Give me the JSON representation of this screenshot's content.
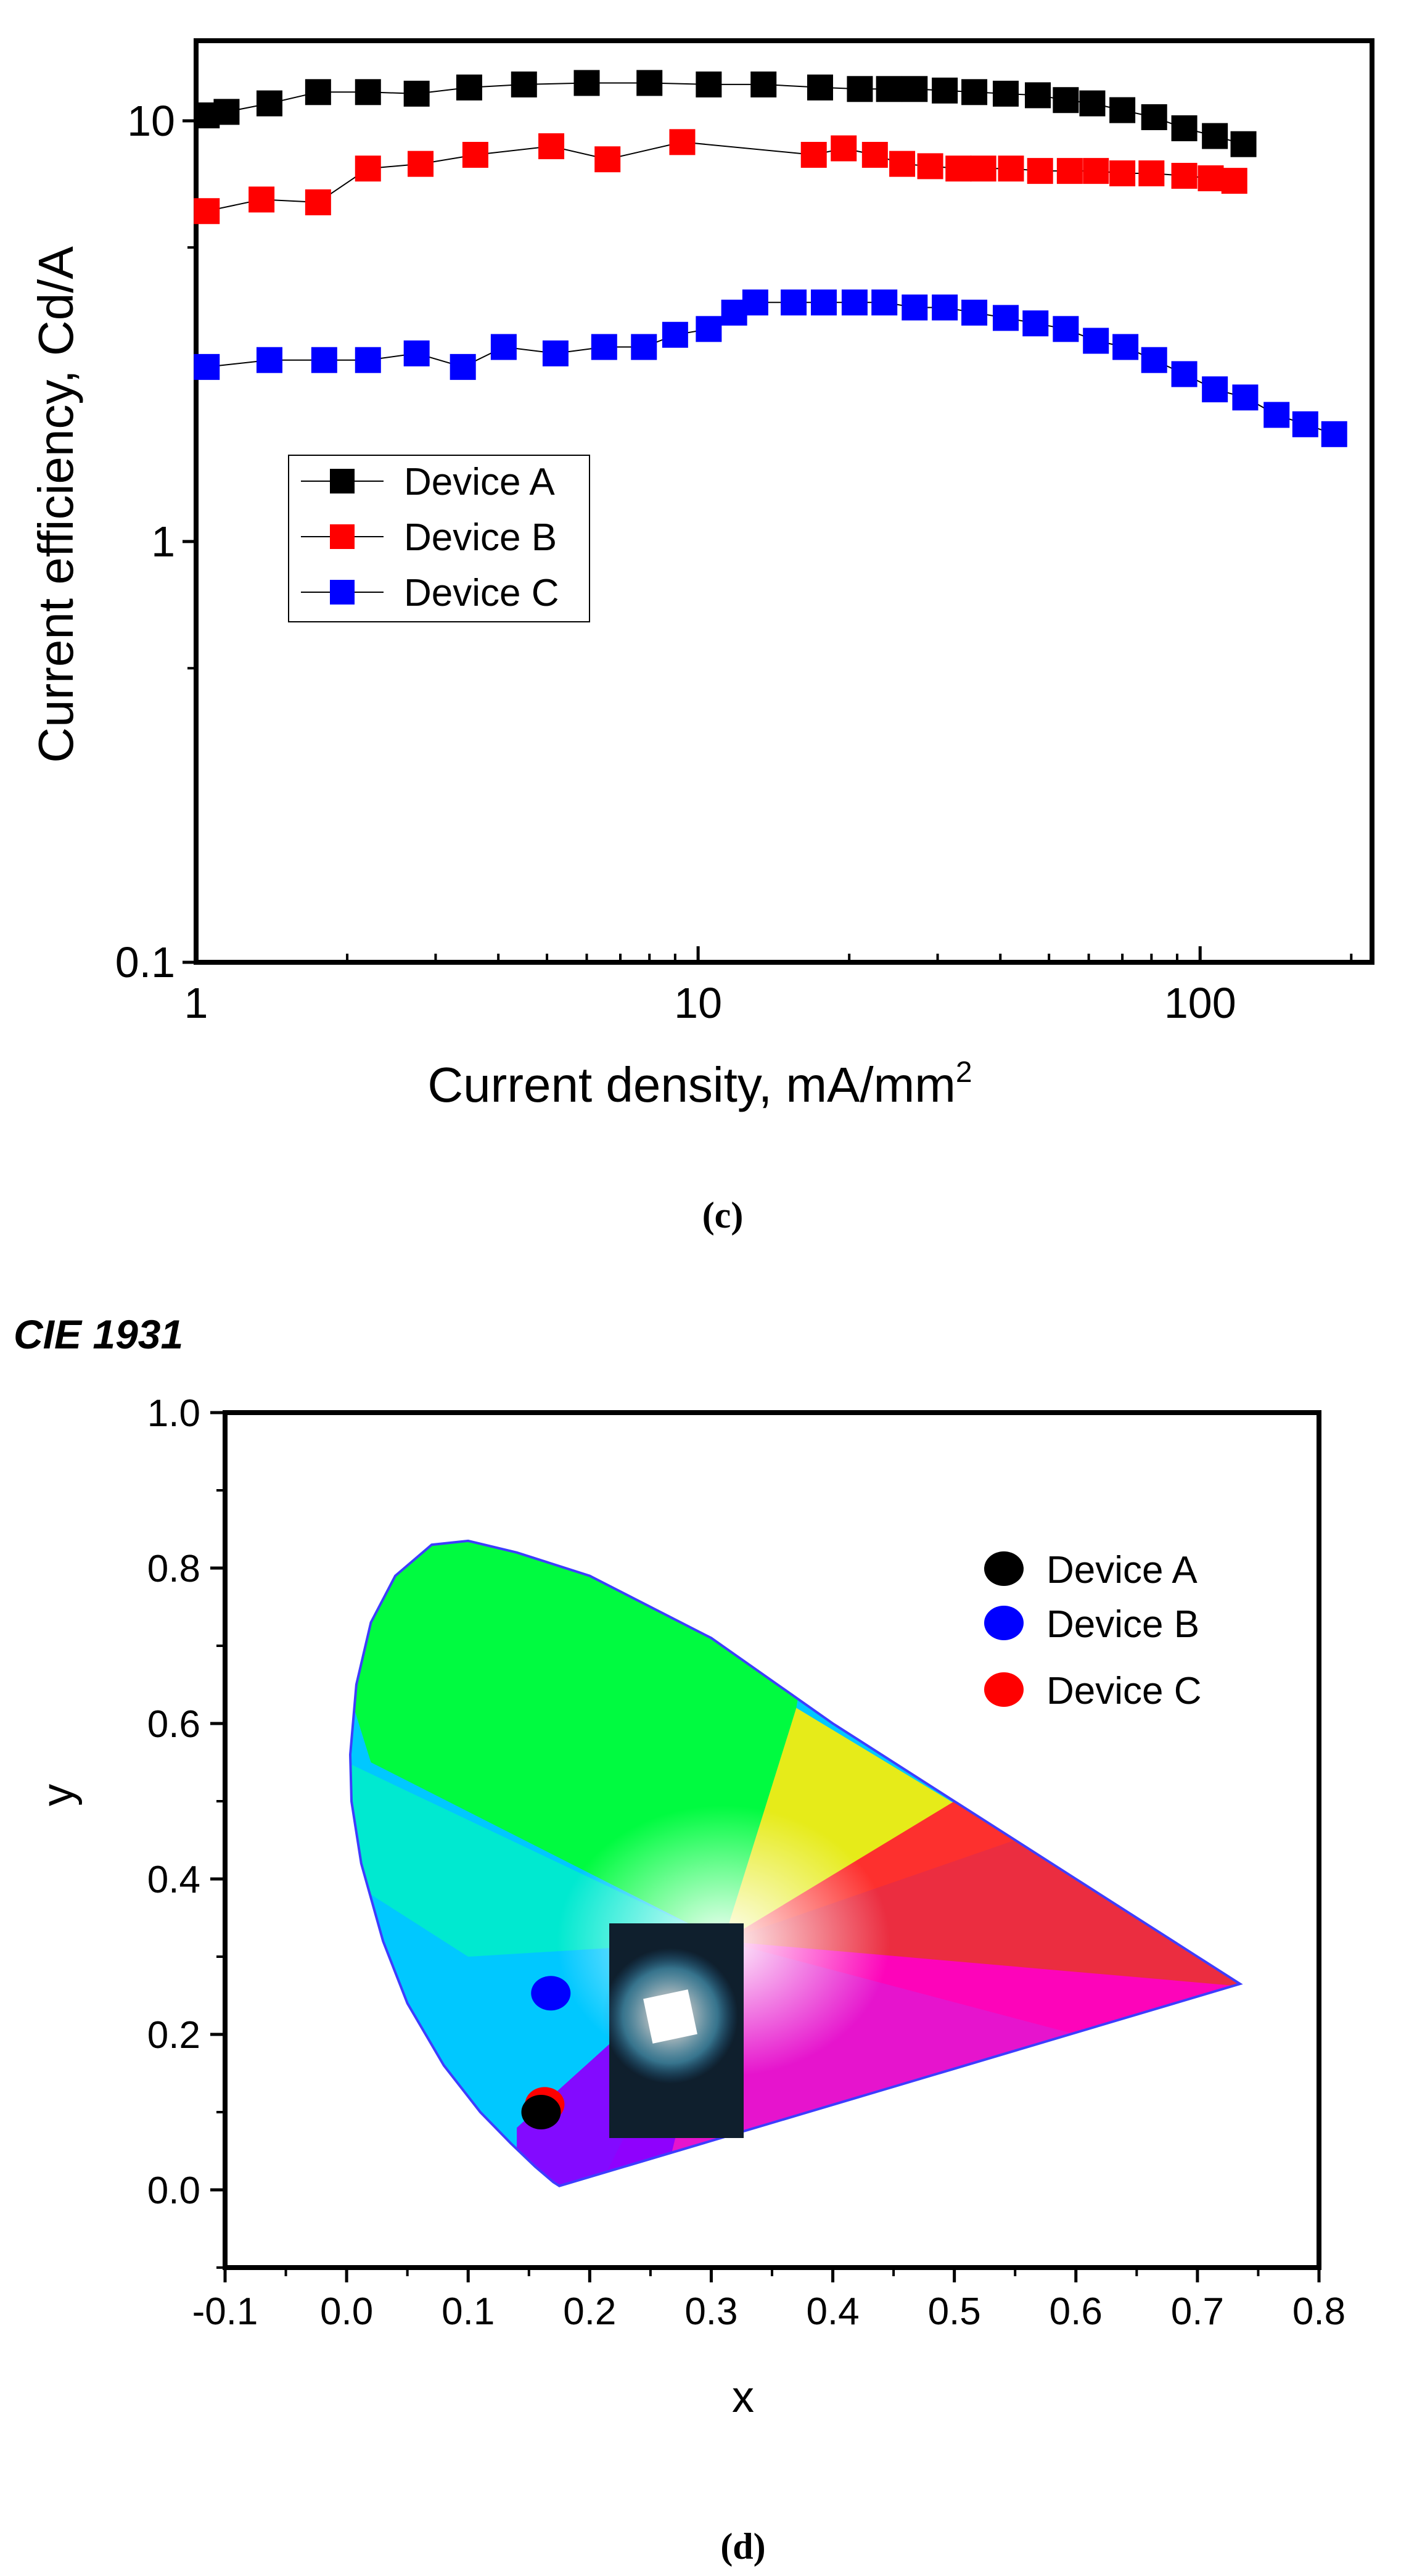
{
  "chart_data": [
    {
      "id": "c",
      "type": "scatter",
      "panel_label": "(c)",
      "x_scale": "log",
      "y_scale": "log",
      "xlabel": "Current density, mA/mm",
      "xlabel_sup": "2",
      "ylabel": "Current efficiency, Cd/A",
      "xlim": [
        1,
        220
      ],
      "ylim": [
        0.1,
        15.5
      ],
      "x_ticks": [
        1,
        10,
        100
      ],
      "x_tick_labels": [
        "1",
        "10",
        "100"
      ],
      "y_ticks": [
        0.1,
        1,
        10
      ],
      "y_tick_labels": [
        "0.1",
        "1",
        "10"
      ],
      "grid": false,
      "legend_position": "left-middle",
      "series": [
        {
          "name": "Device A",
          "color": "#000000",
          "points": [
            [
              1.05,
              10.3
            ],
            [
              1.15,
              10.5
            ],
            [
              1.4,
              11.0
            ],
            [
              1.75,
              11.7
            ],
            [
              2.2,
              11.7
            ],
            [
              2.75,
              11.6
            ],
            [
              3.5,
              12.0
            ],
            [
              4.5,
              12.2
            ],
            [
              6.0,
              12.3
            ],
            [
              8.0,
              12.3
            ],
            [
              10.5,
              12.2
            ],
            [
              13.5,
              12.2
            ],
            [
              17.5,
              12.0
            ],
            [
              21.0,
              11.9
            ],
            [
              24.0,
              11.9
            ],
            [
              27.0,
              11.9
            ],
            [
              31.0,
              11.8
            ],
            [
              35.5,
              11.7
            ],
            [
              41.0,
              11.6
            ],
            [
              47.5,
              11.5
            ],
            [
              54.0,
              11.2
            ],
            [
              61.0,
              11.0
            ],
            [
              70.0,
              10.6
            ],
            [
              81.0,
              10.2
            ],
            [
              93.0,
              9.6
            ],
            [
              107.0,
              9.2
            ],
            [
              122.0,
              8.8
            ]
          ]
        },
        {
          "name": "Device B",
          "color": "#ff0000",
          "points": [
            [
              1.05,
              6.1
            ],
            [
              1.35,
              6.5
            ],
            [
              1.75,
              6.4
            ],
            [
              2.2,
              7.7
            ],
            [
              2.8,
              7.9
            ],
            [
              3.6,
              8.3
            ],
            [
              5.1,
              8.7
            ],
            [
              6.6,
              8.1
            ],
            [
              9.3,
              8.9
            ],
            [
              17.0,
              8.3
            ],
            [
              19.5,
              8.6
            ],
            [
              22.5,
              8.3
            ],
            [
              25.5,
              7.9
            ],
            [
              29.0,
              7.8
            ],
            [
              33.0,
              7.7
            ],
            [
              37.0,
              7.7
            ],
            [
              42.0,
              7.7
            ],
            [
              48.0,
              7.6
            ],
            [
              55.0,
              7.6
            ],
            [
              62.0,
              7.6
            ],
            [
              70.0,
              7.5
            ],
            [
              80.0,
              7.5
            ],
            [
              93.0,
              7.4
            ],
            [
              105.0,
              7.3
            ],
            [
              117.0,
              7.2
            ]
          ]
        },
        {
          "name": "Device C",
          "color": "#0000ff",
          "points": [
            [
              1.05,
              2.6
            ],
            [
              1.4,
              2.7
            ],
            [
              1.8,
              2.7
            ],
            [
              2.2,
              2.7
            ],
            [
              2.75,
              2.8
            ],
            [
              3.4,
              2.6
            ],
            [
              4.1,
              2.9
            ],
            [
              5.2,
              2.8
            ],
            [
              6.5,
              2.9
            ],
            [
              7.8,
              2.9
            ],
            [
              9.0,
              3.1
            ],
            [
              10.5,
              3.2
            ],
            [
              11.8,
              3.5
            ],
            [
              13.0,
              3.7
            ],
            [
              15.5,
              3.7
            ],
            [
              17.8,
              3.7
            ],
            [
              20.5,
              3.7
            ],
            [
              23.5,
              3.7
            ],
            [
              27.0,
              3.6
            ],
            [
              31.0,
              3.6
            ],
            [
              35.5,
              3.5
            ],
            [
              41.0,
              3.4
            ],
            [
              47.0,
              3.3
            ],
            [
              54.0,
              3.2
            ],
            [
              62.0,
              3.0
            ],
            [
              71.0,
              2.9
            ],
            [
              81.0,
              2.7
            ],
            [
              93.0,
              2.5
            ],
            [
              107.0,
              2.3
            ],
            [
              123.0,
              2.2
            ],
            [
              142.0,
              2.0
            ],
            [
              162.0,
              1.9
            ],
            [
              185.0,
              1.8
            ]
          ]
        }
      ]
    },
    {
      "id": "d",
      "type": "scatter",
      "title": "CIE 1931",
      "panel_label": "(d)",
      "xlabel": "x",
      "ylabel": "y",
      "xlim": [
        -0.1,
        0.8
      ],
      "ylim": [
        -0.1,
        1.0
      ],
      "x_ticks": [
        -0.1,
        0.0,
        0.1,
        0.2,
        0.3,
        0.4,
        0.5,
        0.6,
        0.7,
        0.8
      ],
      "x_tick_labels": [
        "-0.1",
        "0.0",
        "0.1",
        "0.2",
        "0.3",
        "0.4",
        "0.5",
        "0.6",
        "0.7",
        "0.8"
      ],
      "y_ticks": [
        0.0,
        0.2,
        0.4,
        0.6,
        0.8,
        1.0
      ],
      "y_tick_labels": [
        "0.0",
        "0.2",
        "0.4",
        "0.6",
        "0.8",
        "1.0"
      ],
      "grid": false,
      "legend_position": "top-right",
      "gamut_locus": [
        [
          0.175,
          0.005
        ],
        [
          0.17,
          0.01
        ],
        [
          0.155,
          0.03
        ],
        [
          0.135,
          0.06
        ],
        [
          0.11,
          0.1
        ],
        [
          0.08,
          0.16
        ],
        [
          0.05,
          0.24
        ],
        [
          0.03,
          0.32
        ],
        [
          0.012,
          0.42
        ],
        [
          0.004,
          0.5
        ],
        [
          0.003,
          0.56
        ],
        [
          0.008,
          0.65
        ],
        [
          0.02,
          0.73
        ],
        [
          0.04,
          0.79
        ],
        [
          0.07,
          0.83
        ],
        [
          0.1,
          0.835
        ],
        [
          0.14,
          0.82
        ],
        [
          0.2,
          0.79
        ],
        [
          0.3,
          0.71
        ],
        [
          0.4,
          0.6
        ],
        [
          0.5,
          0.5
        ],
        [
          0.6,
          0.4
        ],
        [
          0.7,
          0.3
        ],
        [
          0.735,
          0.265
        ]
      ],
      "series": [
        {
          "name": "Device A",
          "color": "#000000",
          "points": [
            [
              0.16,
              0.1
            ]
          ]
        },
        {
          "name": "Device B",
          "color": "#0000ff",
          "points": [
            [
              0.168,
              0.253
            ]
          ]
        },
        {
          "name": "Device C",
          "color": "#ff0000",
          "points": [
            [
              0.163,
              0.11
            ]
          ]
        }
      ]
    }
  ]
}
